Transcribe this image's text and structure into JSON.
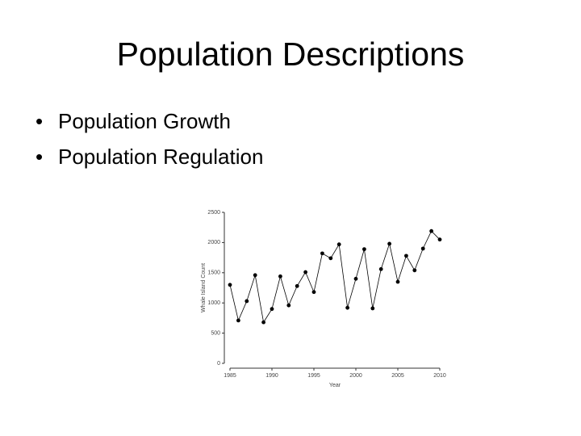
{
  "title": "Population Descriptions",
  "bullets": [
    "Population Growth",
    "Population Regulation"
  ],
  "chart_data": {
    "type": "line",
    "x": [
      1985,
      1986,
      1987,
      1988,
      1989,
      1990,
      1991,
      1992,
      1993,
      1994,
      1995,
      1996,
      1997,
      1998,
      1999,
      2000,
      2001,
      2002,
      2003,
      2004,
      2005,
      2006,
      2007,
      2008,
      2009,
      2010
    ],
    "values": [
      1300,
      710,
      1030,
      1460,
      680,
      900,
      1440,
      960,
      1280,
      1510,
      1180,
      1820,
      1740,
      1970,
      920,
      1400,
      1890,
      910,
      1560,
      1980,
      1350,
      1780,
      1540,
      1900,
      2190,
      2050
    ],
    "color": "#000000",
    "xlim": [
      1985,
      2010
    ],
    "xticks": [
      1985,
      1990,
      1995,
      2000,
      2005,
      2010
    ],
    "ylim": [
      0,
      2500
    ],
    "yticks": [
      0,
      500,
      1000,
      1500,
      2000,
      2500
    ],
    "x_label": "Year",
    "y_label": "Whale Island Count"
  }
}
